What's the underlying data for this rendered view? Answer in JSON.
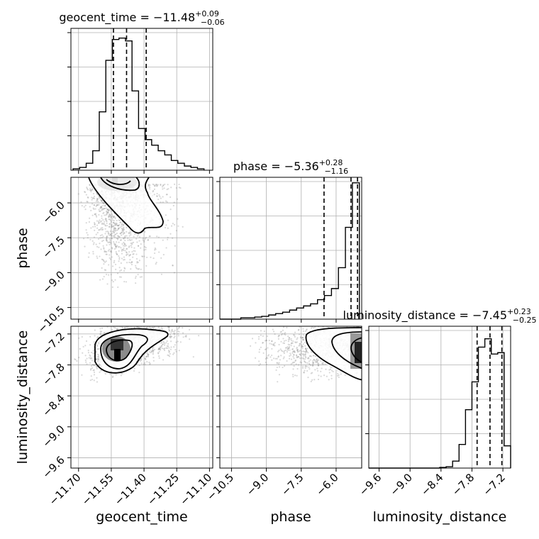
{
  "figure_type": "corner plot",
  "chart_data": {
    "type": "corner",
    "parameters": [
      "geocent_time",
      "phase",
      "luminosity_distance"
    ],
    "axes": {
      "geocent_time": {
        "label": "geocent_time",
        "range": [
          -11.735,
          -11.085
        ],
        "ticks": [
          -11.7,
          -11.55,
          -11.4,
          -11.25,
          -11.1
        ],
        "tick_labels": [
          "−11.70",
          "−11.55",
          "−11.40",
          "−11.25",
          "−11.10"
        ]
      },
      "phase": {
        "label": "phase",
        "range": [
          -11.0,
          -4.9
        ],
        "ticks": [
          -10.5,
          -9.0,
          -7.5,
          -6.0
        ],
        "tick_labels": [
          "−10.5",
          "−9.0",
          "−7.5",
          "−6.0"
        ]
      },
      "luminosity_distance": {
        "label": "luminosity_distance",
        "range": [
          -9.8,
          -7.05
        ],
        "ticks": [
          -9.6,
          -9.0,
          -8.4,
          -7.8,
          -7.2
        ],
        "tick_labels": [
          "−9.6",
          "−9.0",
          "−8.4",
          "−7.8",
          "−7.2"
        ]
      }
    },
    "histograms": [
      {
        "parameter": "geocent_time",
        "title": "geocent_time = −11.48",
        "title_sup": "+0.09",
        "title_sub": "−0.06",
        "median": -11.48,
        "quantiles": [
          -11.54,
          -11.48,
          -11.39
        ],
        "bin_edges": [
          -11.725,
          -11.695,
          -11.665,
          -11.635,
          -11.605,
          -11.575,
          -11.545,
          -11.515,
          -11.485,
          -11.455,
          -11.425,
          -11.395,
          -11.365,
          -11.335,
          -11.305,
          -11.275,
          -11.245,
          -11.215,
          -11.185,
          -11.155,
          -11.125
        ],
        "values": [
          0.01,
          0.02,
          0.05,
          0.14,
          0.42,
          0.79,
          0.94,
          0.95,
          0.93,
          0.57,
          0.3,
          0.22,
          0.18,
          0.14,
          0.11,
          0.07,
          0.05,
          0.03,
          0.02,
          0.01
        ]
      },
      {
        "parameter": "phase",
        "title": "phase = −5.36",
        "title_sup": "+0.28",
        "title_sub": "−1.16",
        "median": -5.36,
        "quantiles": [
          -6.52,
          -5.36,
          -5.08
        ],
        "bin_edges": [
          -11.0,
          -10.7,
          -10.4,
          -10.1,
          -9.8,
          -9.5,
          -9.2,
          -8.9,
          -8.6,
          -8.3,
          -8.0,
          -7.7,
          -7.4,
          -7.1,
          -6.8,
          -6.5,
          -6.2,
          -5.9,
          -5.6,
          -5.3,
          -5.0
        ],
        "values": [
          0.0,
          0.0,
          0.0,
          0.01,
          0.01,
          0.015,
          0.02,
          0.03,
          0.04,
          0.05,
          0.065,
          0.08,
          0.095,
          0.11,
          0.14,
          0.17,
          0.22,
          0.37,
          0.66,
          0.98
        ]
      },
      {
        "parameter": "luminosity_distance",
        "title": "luminosity_distance = −7.45",
        "title_sup": "+0.23",
        "title_sub": "−0.25",
        "median": -7.45,
        "quantiles": [
          -7.7,
          -7.45,
          -7.22
        ],
        "bin_edges": [
          -9.8,
          -9.675,
          -9.55,
          -9.425,
          -9.3,
          -9.175,
          -9.05,
          -8.925,
          -8.8,
          -8.675,
          -8.55,
          -8.425,
          -8.3,
          -8.175,
          -8.05,
          -7.925,
          -7.8,
          -7.675,
          -7.55,
          -7.425,
          -7.3,
          -7.175,
          -7.05
        ],
        "values": [
          0.0,
          0.0,
          0.0,
          0.0,
          0.0,
          0.0,
          0.0,
          0.0,
          0.0,
          0.0,
          0.0,
          0.005,
          0.01,
          0.05,
          0.17,
          0.42,
          0.62,
          0.87,
          0.93,
          0.82,
          0.83,
          0.16
        ]
      }
    ]
  }
}
